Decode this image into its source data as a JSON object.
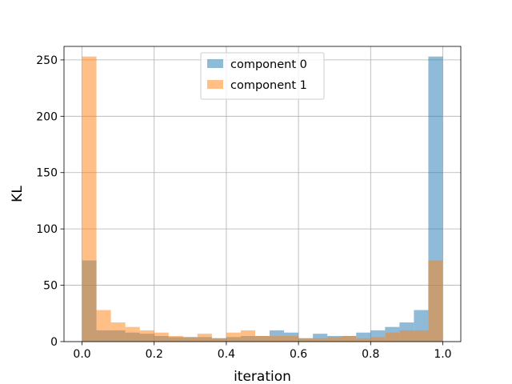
{
  "chart_data": {
    "type": "bar",
    "xlabel": "iteration",
    "ylabel": "KL",
    "xlim": [
      -0.05,
      1.05
    ],
    "ylim": [
      0,
      262
    ],
    "xticks": [
      0.0,
      0.2,
      0.4,
      0.6,
      0.8,
      1.0
    ],
    "xtick_labels": [
      "0.0",
      "0.2",
      "0.4",
      "0.6",
      "0.8",
      "1.0"
    ],
    "yticks": [
      0,
      50,
      100,
      150,
      200,
      250
    ],
    "ytick_labels": [
      "0",
      "50",
      "100",
      "150",
      "200",
      "250"
    ],
    "grid": true,
    "legend_position": "top-center",
    "bin_edges": [
      0.0,
      0.04,
      0.08,
      0.12,
      0.16,
      0.2,
      0.24,
      0.28,
      0.32,
      0.36,
      0.4,
      0.44,
      0.48,
      0.52,
      0.56,
      0.6,
      0.64,
      0.68,
      0.72,
      0.76,
      0.8,
      0.84,
      0.88,
      0.92,
      0.96,
      1.0
    ],
    "series": [
      {
        "name": "component 0",
        "color": "#1f77b4",
        "opacity": 0.5,
        "values": [
          72,
          10,
          10,
          8,
          7,
          5,
          4,
          4,
          4,
          3,
          4,
          5,
          5,
          10,
          8,
          3,
          7,
          5,
          5,
          8,
          10,
          13,
          17,
          28,
          253
        ]
      },
      {
        "name": "component 1",
        "color": "#ff7f0e",
        "opacity": 0.5,
        "values": [
          253,
          28,
          17,
          13,
          10,
          8,
          5,
          4,
          7,
          3,
          8,
          10,
          5,
          5,
          5,
          3,
          3,
          4,
          5,
          3,
          4,
          8,
          10,
          10,
          72
        ]
      }
    ]
  }
}
